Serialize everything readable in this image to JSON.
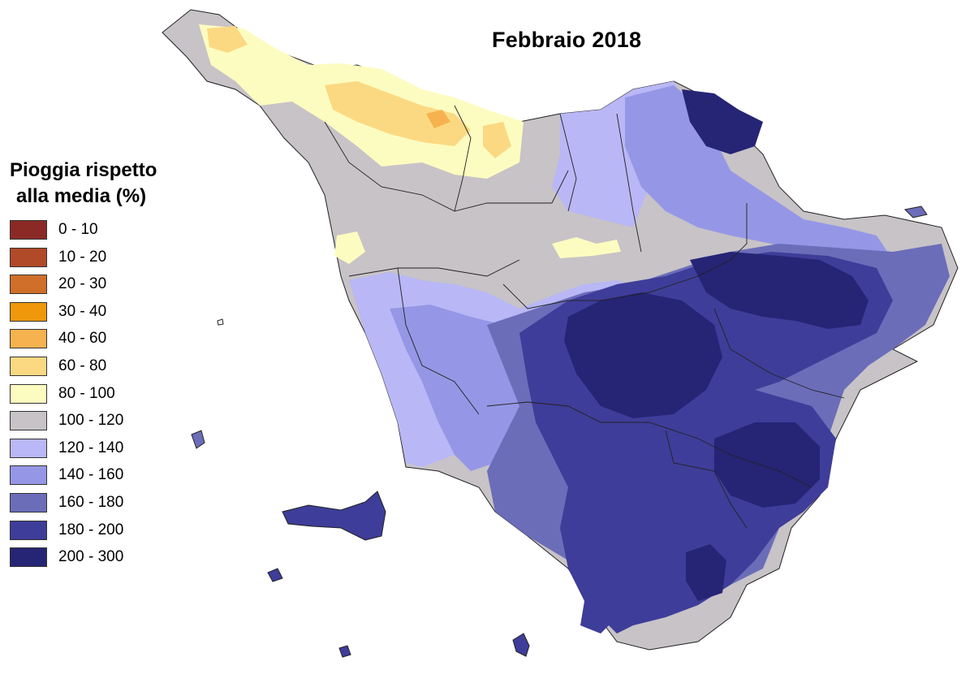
{
  "title": "Febbraio 2018",
  "legend": {
    "title_line1": "Pioggia rispetto",
    "title_line2": "alla media (%)",
    "items": [
      {
        "label": "0 - 10",
        "color": "#8b2a25"
      },
      {
        "label": "10 - 20",
        "color": "#b04a28"
      },
      {
        "label": "20 - 30",
        "color": "#cf6f2a"
      },
      {
        "label": "30 - 40",
        "color": "#ef980c"
      },
      {
        "label": "40 - 60",
        "color": "#f6b24e"
      },
      {
        "label": "60 - 80",
        "color": "#fbd983"
      },
      {
        "label": "80 - 100",
        "color": "#fdfcc0"
      },
      {
        "label": "100 - 120",
        "color": "#c7c3c7"
      },
      {
        "label": "120 - 140",
        "color": "#b9b7f5"
      },
      {
        "label": "140 - 160",
        "color": "#9597e6"
      },
      {
        "label": "160 - 180",
        "color": "#6b6db9"
      },
      {
        "label": "180 - 200",
        "color": "#3e3d99"
      },
      {
        "label": "200 - 300",
        "color": "#262475"
      }
    ]
  }
}
